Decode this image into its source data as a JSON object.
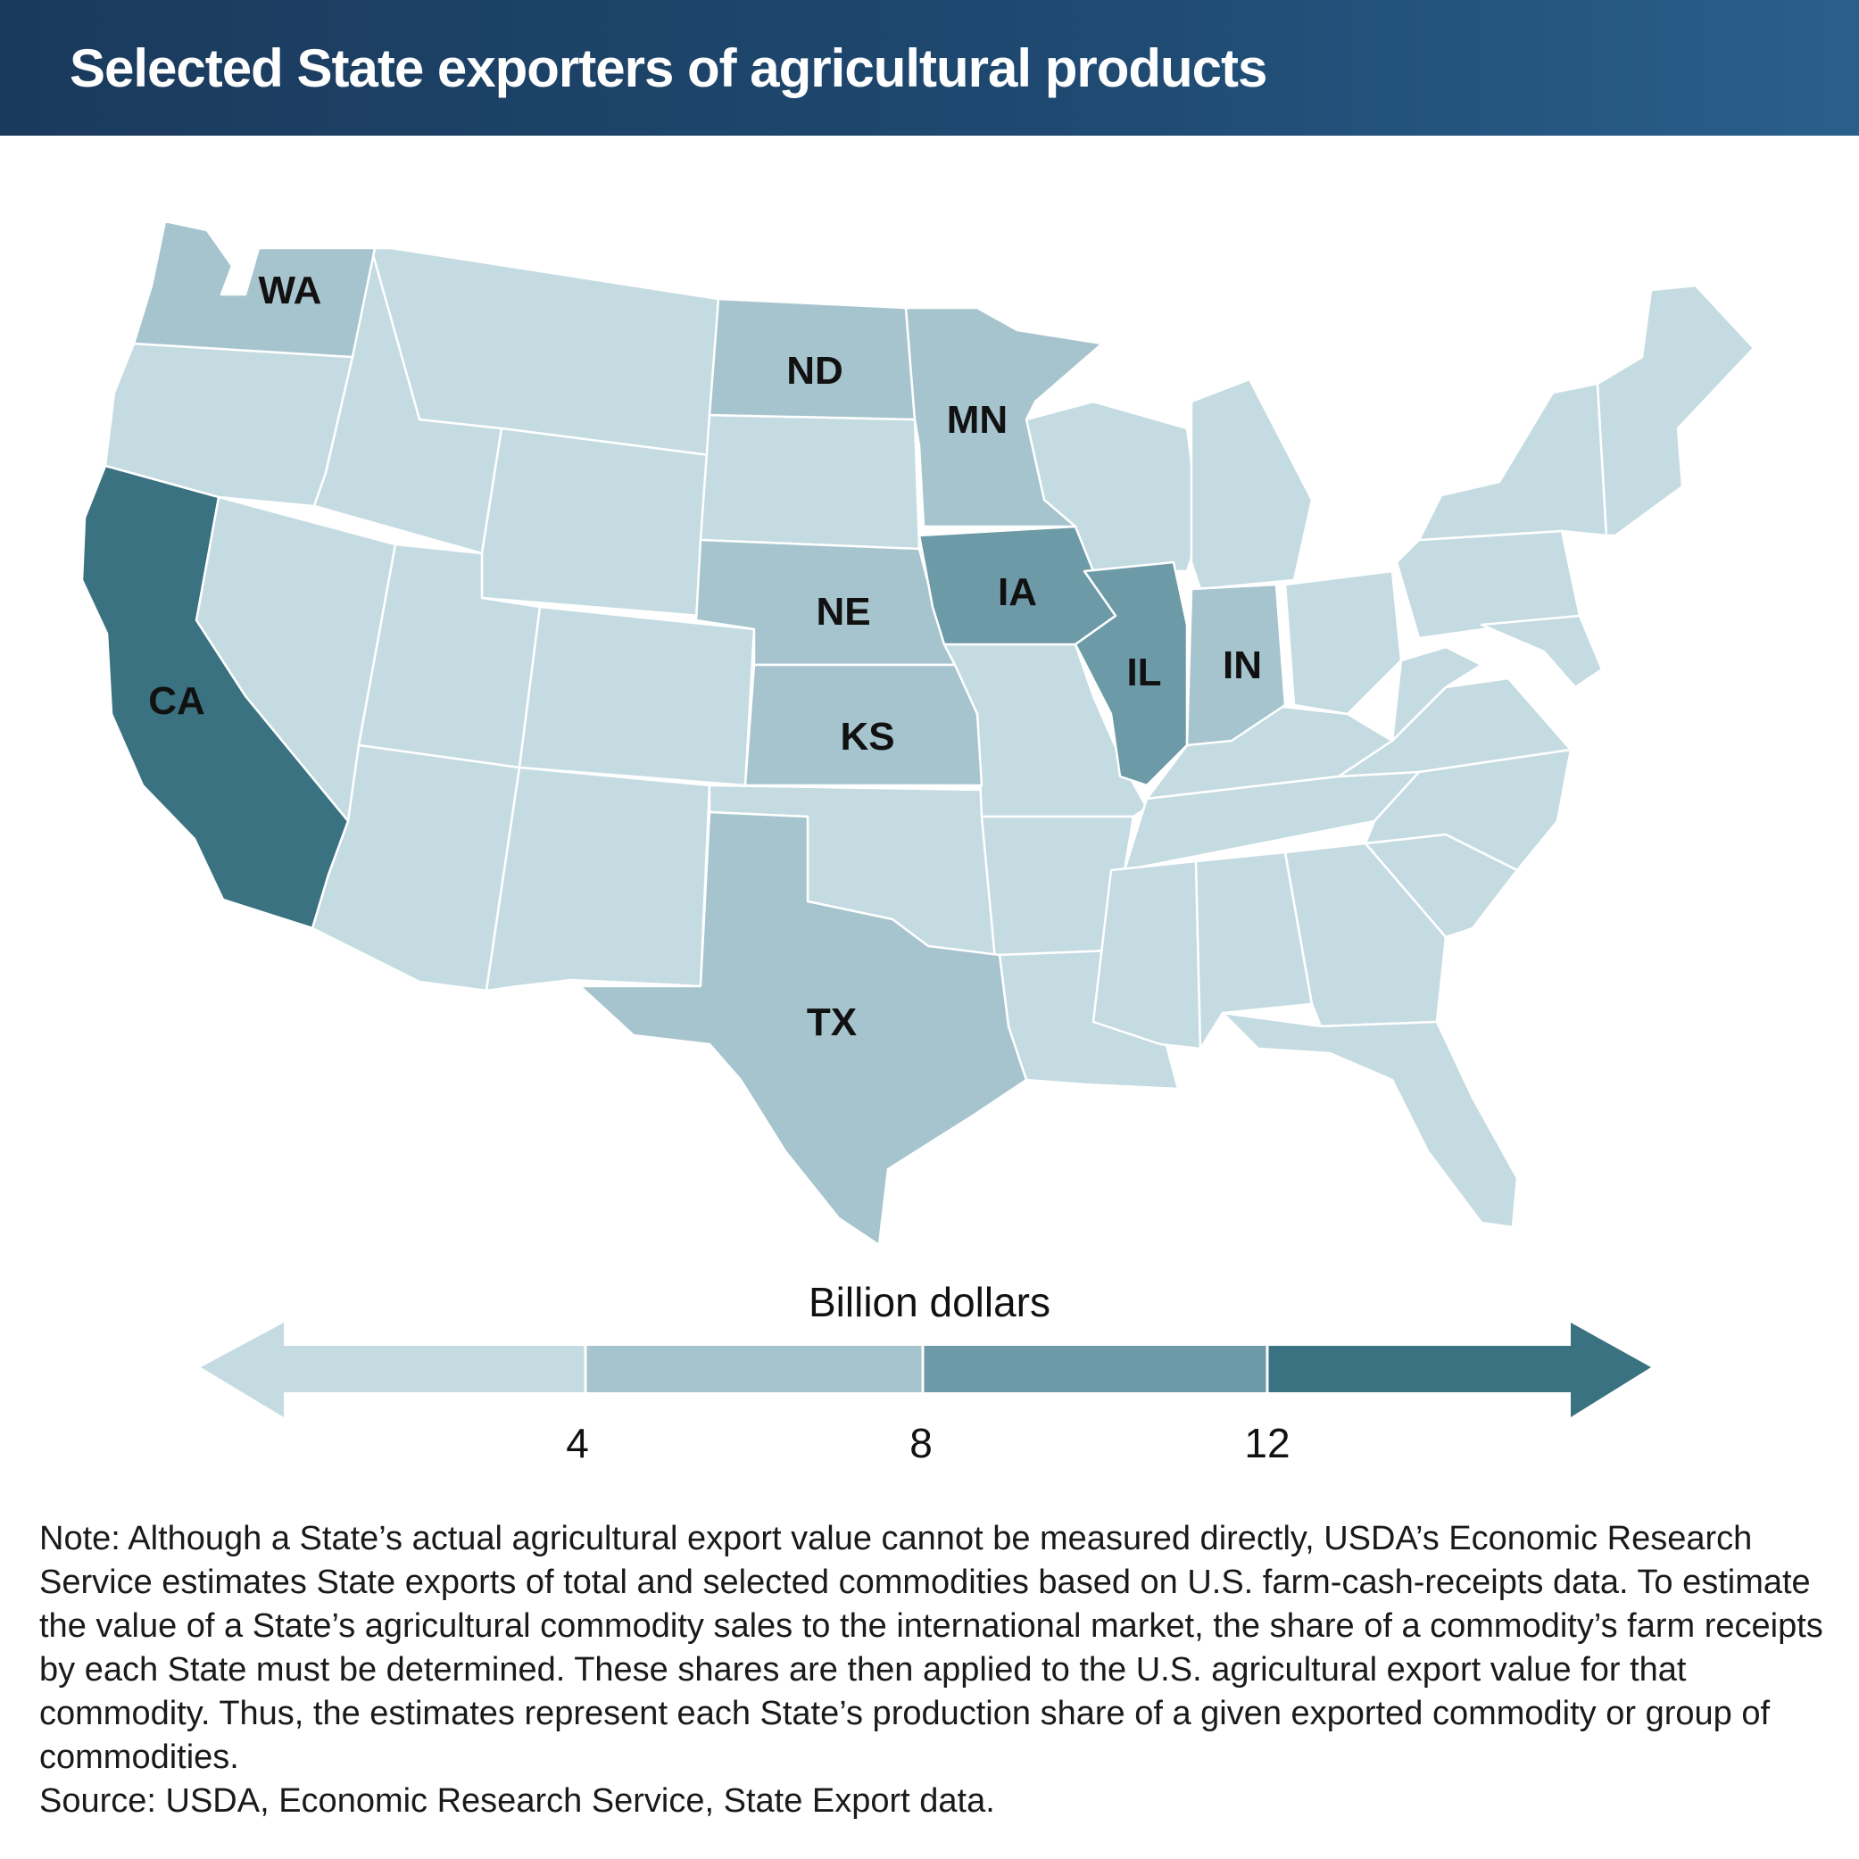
{
  "title": "Selected State exporters of agricultural products",
  "colors": {
    "header": "#1f4a72",
    "bin1": "#c4dbe2",
    "bin2": "#a6c4cd",
    "bin3": "#6d9aa7",
    "bin4": "#3a7281"
  },
  "states": [
    {
      "abbr": "WA",
      "label": "WA",
      "bin": 2
    },
    {
      "abbr": "ND",
      "label": "ND",
      "bin": 2
    },
    {
      "abbr": "MN",
      "label": "MN",
      "bin": 2
    },
    {
      "abbr": "NE",
      "label": "NE",
      "bin": 2
    },
    {
      "abbr": "KS",
      "label": "KS",
      "bin": 2
    },
    {
      "abbr": "TX",
      "label": "TX",
      "bin": 2
    },
    {
      "abbr": "IN",
      "label": "IN",
      "bin": 2
    },
    {
      "abbr": "IA",
      "label": "IA",
      "bin": 3
    },
    {
      "abbr": "IL",
      "label": "IL",
      "bin": 3
    },
    {
      "abbr": "CA",
      "label": "CA",
      "bin": 4
    }
  ],
  "legend": {
    "title": "Billion dollars",
    "ticks": [
      "4",
      "8",
      "12"
    ]
  },
  "note": "Note: Although a State’s actual agricultural export value cannot be measured directly, USDA’s Economic Research Service estimates State exports of total and selected commodities based on U.S. farm-cash-receipts data. To estimate the value of a State’s agricultural commodity sales to the international market, the share of a commodity’s farm receipts by each State must be determined. These shares are then applied to the U.S. agricultural export value for that commodity. Thus, the estimates represent each State’s production share of a given exported commodity or group of commodities.",
  "source": "Source: USDA, Economic Research Service, State Export data."
}
